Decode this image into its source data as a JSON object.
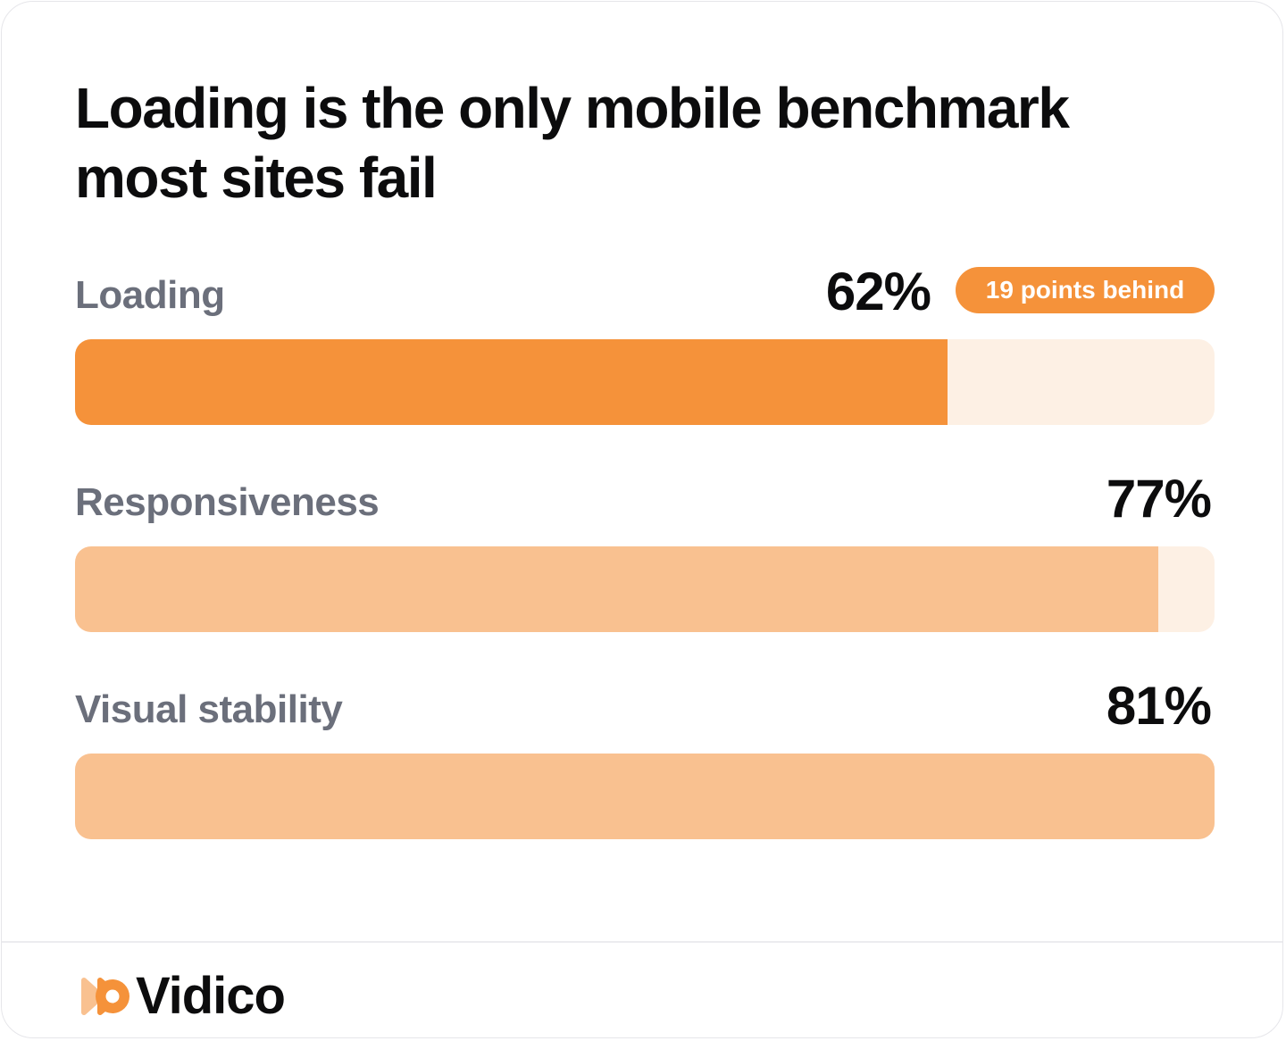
{
  "colors": {
    "primary": "#f5923a",
    "secondary": "#f9c190",
    "track": "#fdf0e4",
    "label": "#6b6f7b",
    "text": "#0c0c0d"
  },
  "chart_data": {
    "type": "bar",
    "orientation": "horizontal",
    "title": "Loading is the only mobile benchmark most sites fail",
    "categories": [
      "Loading",
      "Responsiveness",
      "Visual stability"
    ],
    "values": [
      62,
      77,
      81
    ],
    "value_labels": [
      "62%",
      "77%",
      "81%"
    ],
    "xlim": [
      0,
      81
    ],
    "annotations": [
      {
        "category": "Loading",
        "text": "19 points behind"
      }
    ],
    "highlight": "Loading",
    "grid": false,
    "legend": "none"
  },
  "brand": {
    "name": "Vidico",
    "logo_icon": "vidico-play-icon"
  }
}
